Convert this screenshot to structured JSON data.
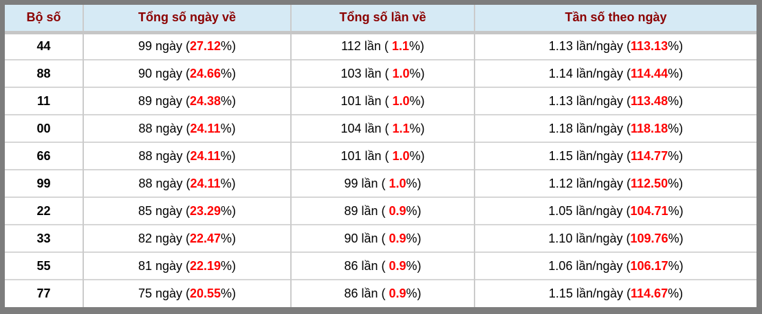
{
  "colors": {
    "frame_border": "#7d7d7d",
    "header_background": "#d6eaf5",
    "header_text": "#8b0000",
    "highlight_percent": "#ff0000",
    "grid_line": "#cbcbcb",
    "body_text": "#000000"
  },
  "table": {
    "headers": [
      "Bộ số",
      "Tổng số ngày về",
      "Tổng số lần về",
      "Tần số theo ngày"
    ],
    "rows": [
      {
        "pair": "44",
        "days": {
          "pre": "99 ngày (",
          "pct": "27.12",
          "post": "%)"
        },
        "times": {
          "pre": "112 lần ( ",
          "pct": "1.1",
          "post": "%)"
        },
        "freq": {
          "pre": "1.13 lần/ngày (",
          "pct": "113.13",
          "post": "%)"
        }
      },
      {
        "pair": "88",
        "days": {
          "pre": "90 ngày (",
          "pct": "24.66",
          "post": "%)"
        },
        "times": {
          "pre": "103 lần ( ",
          "pct": "1.0",
          "post": "%)"
        },
        "freq": {
          "pre": "1.14 lần/ngày (",
          "pct": "114.44",
          "post": "%)"
        }
      },
      {
        "pair": "11",
        "days": {
          "pre": "89 ngày (",
          "pct": "24.38",
          "post": "%)"
        },
        "times": {
          "pre": "101 lần ( ",
          "pct": "1.0",
          "post": "%)"
        },
        "freq": {
          "pre": "1.13 lần/ngày (",
          "pct": "113.48",
          "post": "%)"
        }
      },
      {
        "pair": "00",
        "days": {
          "pre": "88 ngày (",
          "pct": "24.11",
          "post": "%)"
        },
        "times": {
          "pre": "104 lần ( ",
          "pct": "1.1",
          "post": "%)"
        },
        "freq": {
          "pre": "1.18 lần/ngày (",
          "pct": "118.18",
          "post": "%)"
        }
      },
      {
        "pair": "66",
        "days": {
          "pre": "88 ngày (",
          "pct": "24.11",
          "post": "%)"
        },
        "times": {
          "pre": "101 lần ( ",
          "pct": "1.0",
          "post": "%)"
        },
        "freq": {
          "pre": "1.15 lần/ngày (",
          "pct": "114.77",
          "post": "%)"
        }
      },
      {
        "pair": "99",
        "days": {
          "pre": "88 ngày (",
          "pct": "24.11",
          "post": "%)"
        },
        "times": {
          "pre": "99 lần ( ",
          "pct": "1.0",
          "post": "%)"
        },
        "freq": {
          "pre": "1.12 lần/ngày (",
          "pct": "112.50",
          "post": "%)"
        }
      },
      {
        "pair": "22",
        "days": {
          "pre": "85 ngày (",
          "pct": "23.29",
          "post": "%)"
        },
        "times": {
          "pre": "89 lần ( ",
          "pct": "0.9",
          "post": "%)"
        },
        "freq": {
          "pre": "1.05 lần/ngày (",
          "pct": "104.71",
          "post": "%)"
        }
      },
      {
        "pair": "33",
        "days": {
          "pre": "82 ngày (",
          "pct": "22.47",
          "post": "%)"
        },
        "times": {
          "pre": "90 lần ( ",
          "pct": "0.9",
          "post": "%)"
        },
        "freq": {
          "pre": "1.10 lần/ngày (",
          "pct": "109.76",
          "post": "%)"
        }
      },
      {
        "pair": "55",
        "days": {
          "pre": "81 ngày (",
          "pct": "22.19",
          "post": "%)"
        },
        "times": {
          "pre": "86 lần ( ",
          "pct": "0.9",
          "post": "%)"
        },
        "freq": {
          "pre": "1.06 lần/ngày (",
          "pct": "106.17",
          "post": "%)"
        }
      },
      {
        "pair": "77",
        "days": {
          "pre": "75 ngày (",
          "pct": "20.55",
          "post": "%)"
        },
        "times": {
          "pre": "86 lần ( ",
          "pct": "0.9",
          "post": "%)"
        },
        "freq": {
          "pre": "1.15 lần/ngày (",
          "pct": "114.67",
          "post": "%)"
        }
      }
    ]
  },
  "chart_data": {
    "type": "table",
    "columns": [
      "Bộ số",
      "Tổng số ngày về",
      "Tổng số lần về",
      "Tần số theo ngày"
    ],
    "rows": [
      [
        "44",
        "99 ngày (27.12%)",
        "112 lần ( 1.1%)",
        "1.13 lần/ngày (113.13%)"
      ],
      [
        "88",
        "90 ngày (24.66%)",
        "103 lần ( 1.0%)",
        "1.14 lần/ngày (114.44%)"
      ],
      [
        "11",
        "89 ngày (24.38%)",
        "101 lần ( 1.0%)",
        "1.13 lần/ngày (113.48%)"
      ],
      [
        "00",
        "88 ngày (24.11%)",
        "104 lần ( 1.1%)",
        "1.18 lần/ngày (118.18%)"
      ],
      [
        "66",
        "88 ngày (24.11%)",
        "101 lần ( 1.0%)",
        "1.15 lần/ngày (114.77%)"
      ],
      [
        "99",
        "88 ngày (24.11%)",
        "99 lần ( 1.0%)",
        "1.12 lần/ngày (112.50%)"
      ],
      [
        "22",
        "85 ngày (23.29%)",
        "89 lần ( 0.9%)",
        "1.05 lần/ngày (104.71%)"
      ],
      [
        "33",
        "82 ngày (22.47%)",
        "90 lần ( 0.9%)",
        "1.10 lần/ngày (109.76%)"
      ],
      [
        "55",
        "81 ngày (22.19%)",
        "86 lần ( 0.9%)",
        "1.06 lần/ngày (106.17%)"
      ],
      [
        "77",
        "75 ngày (20.55%)",
        "86 lần ( 0.9%)",
        "1.15 lần/ngày (114.67%)"
      ]
    ]
  }
}
